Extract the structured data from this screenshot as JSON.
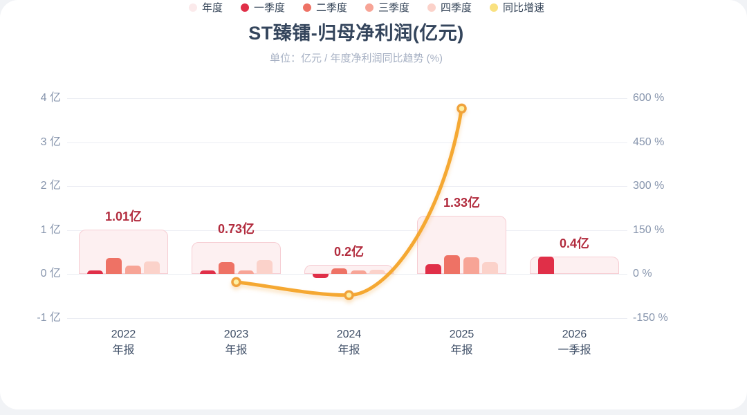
{
  "page": {
    "title": "ST臻镭-归母净利润(亿元)",
    "subtitle": "单位：亿元 / 年度净利润同比趋势 (%)"
  },
  "colors": {
    "title": "#34455c",
    "subtitle": "#a6b0c3",
    "axis_text": "#8795ad",
    "grid": "#ebedf3",
    "x_label": "#3e4e66",
    "value_label": "#b22c3e",
    "annual": "#fdf0f1",
    "annual_border": "#f6cdd3",
    "q1": "#e02f48",
    "q2": "#ee7265",
    "q3": "#f7a496",
    "q4": "#fbd2ca",
    "line": "#f5a832",
    "marker_fill": "#fdf0a4",
    "marker_stroke": "#f0a23c",
    "legend_text": "#2f3f53"
  },
  "chart_data": {
    "type": "bar+line",
    "title": "ST臻镭-归母净利润(亿元)",
    "subtitle": "单位：亿元 / 年度净利润同比趋势 (%)",
    "categories": [
      [
        "2022",
        "年报"
      ],
      [
        "2023",
        "年报"
      ],
      [
        "2024",
        "年报"
      ],
      [
        "2025",
        "年报"
      ],
      [
        "2026",
        "一季报"
      ]
    ],
    "annual": {
      "name": "年度",
      "values": [
        1.01,
        0.73,
        0.2,
        1.33,
        0.4
      ],
      "labels": [
        "1.01亿",
        "0.73亿",
        "0.2亿",
        "1.33亿",
        "0.4亿"
      ]
    },
    "series": [
      {
        "name": "一季度",
        "key": "q1",
        "values": [
          0.08,
          0.08,
          -0.09,
          0.22,
          0.4
        ]
      },
      {
        "name": "二季度",
        "key": "q2",
        "values": [
          0.37,
          0.26,
          0.12,
          0.42,
          null
        ]
      },
      {
        "name": "三季度",
        "key": "q3",
        "values": [
          0.19,
          0.08,
          0.08,
          0.38,
          null
        ]
      },
      {
        "name": "四季度",
        "key": "q4",
        "values": [
          0.28,
          0.31,
          0.09,
          0.27,
          null
        ]
      }
    ],
    "growth_line": {
      "name": "同比增速",
      "unit": "%",
      "values": [
        null,
        -27.7,
        -72.6,
        565,
        null
      ]
    },
    "y_left": {
      "label": "亿",
      "ticks": [
        "4 亿",
        "3 亿",
        "2 亿",
        "1 亿",
        "0 亿",
        "-1 亿"
      ],
      "values": [
        4,
        3,
        2,
        1,
        0,
        -1
      ]
    },
    "y_right": {
      "label": "%",
      "ticks": [
        "600 %",
        "450 %",
        "300 %",
        "150 %",
        "0 %",
        "-150 %"
      ],
      "values": [
        600,
        450,
        300,
        150,
        0,
        -150
      ]
    },
    "grid": true,
    "legend_position": "bottom"
  },
  "legend": [
    {
      "label": "年度",
      "color": "#fbeaeb"
    },
    {
      "label": "一季度",
      "color": "#e02f48"
    },
    {
      "label": "二季度",
      "color": "#ee7265"
    },
    {
      "label": "三季度",
      "color": "#f7a496"
    },
    {
      "label": "四季度",
      "color": "#fbd2ca"
    },
    {
      "label": "同比增速",
      "color": "#f9e180"
    }
  ]
}
